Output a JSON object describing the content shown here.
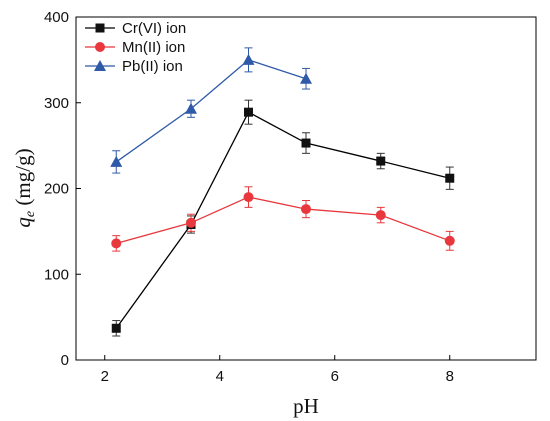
{
  "chart_data": {
    "type": "line",
    "xlabel": "pH",
    "ylabel_main": "q",
    "ylabel_sub": "e",
    "ylabel_unit": " (mg/g)",
    "xlim": [
      1.5,
      9.5
    ],
    "ylim": [
      0,
      400
    ],
    "xticks": [
      2,
      4,
      6,
      8
    ],
    "yticks": [
      0,
      100,
      200,
      300,
      400
    ],
    "grid": false,
    "legend_position": "top-left",
    "series": [
      {
        "name": "Cr(VI) ion",
        "marker": "square",
        "line_color": "#000000",
        "marker_color": "#111111",
        "errorbar_color": "#333333",
        "x": [
          2.2,
          3.5,
          4.5,
          5.5,
          6.8,
          8.0
        ],
        "y": [
          37,
          158,
          289,
          253,
          232,
          212
        ],
        "error": [
          9,
          10,
          14,
          12,
          9,
          13
        ]
      },
      {
        "name": "Mn(II) ion",
        "marker": "circle",
        "line_color": "#e8383d",
        "marker_color": "#e8383d",
        "errorbar_color": "#e8383d",
        "x": [
          2.2,
          3.5,
          4.5,
          5.5,
          6.8,
          8.0
        ],
        "y": [
          136,
          160,
          190,
          176,
          169,
          139
        ],
        "error": [
          9,
          10,
          12,
          10,
          9,
          11
        ]
      },
      {
        "name": "Pb(II) ion",
        "marker": "triangle",
        "line_color": "#2f5aa8",
        "marker_color": "#2f5aa8",
        "errorbar_color": "#2f5aa8",
        "x": [
          2.2,
          3.5,
          4.5,
          5.5
        ],
        "y": [
          231,
          293,
          350,
          328
        ],
        "error": [
          13,
          10,
          14,
          12
        ]
      }
    ]
  }
}
